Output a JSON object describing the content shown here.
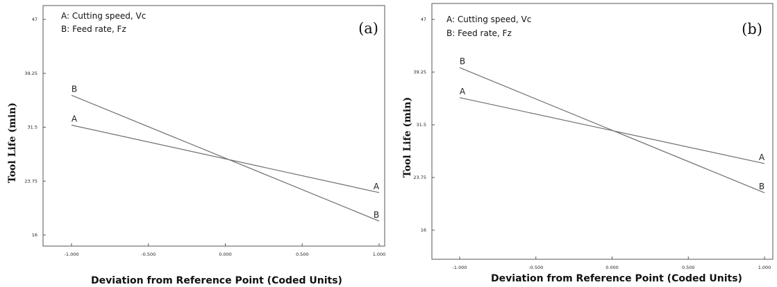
{
  "chart_data": [
    {
      "type": "line",
      "panel_label": "(a)",
      "legend": [
        "A: Cutting speed, Vc",
        "B: Feed rate, Fz"
      ],
      "xlabel": "Deviation from Reference Point (Coded Units)",
      "ylabel": "Tool Life (min)",
      "xlim": [
        -1.0,
        1.0
      ],
      "ylim": [
        16,
        47
      ],
      "xticks": [
        "-1.000",
        "-0.500",
        "0.000",
        "0.500",
        "1.000"
      ],
      "yticks": [
        "47",
        "39.25",
        "31.5",
        "23.75",
        "16"
      ],
      "grid": false,
      "series": [
        {
          "name": "A",
          "x": [
            -1.0,
            1.0
          ],
          "y": [
            31.8,
            22.1
          ]
        },
        {
          "name": "B",
          "x": [
            -1.0,
            1.0
          ],
          "y": [
            36.1,
            18.0
          ]
        }
      ]
    },
    {
      "type": "line",
      "panel_label": "(b)",
      "legend": [
        "A: Cutting speed, Vc",
        "B: Feed rate, Fz"
      ],
      "xlabel": "Deviation from Reference Point (Coded Units)",
      "ylabel": "Tool Life (min)",
      "xlim": [
        -1.0,
        1.0
      ],
      "ylim": [
        16,
        47
      ],
      "xticks": [
        "-1.000",
        "-0.500",
        "0.000",
        "0.500",
        "1.000"
      ],
      "yticks": [
        "47",
        "39.25",
        "31.5",
        "23.75",
        "16"
      ],
      "grid": false,
      "series": [
        {
          "name": "A",
          "x": [
            -1.0,
            1.0
          ],
          "y": [
            35.5,
            25.8
          ]
        },
        {
          "name": "B",
          "x": [
            -1.0,
            1.0
          ],
          "y": [
            39.9,
            21.5
          ]
        }
      ]
    }
  ]
}
